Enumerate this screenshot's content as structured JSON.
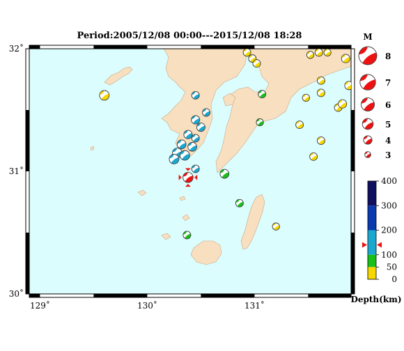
{
  "title": "Period:2005/12/08 00:00---2015/12/08 18:28",
  "colors": {
    "sea": "#dcfdfd",
    "land": "#f7dfbf",
    "coast": "#c8a888",
    "frame": "#000000",
    "shallow": "#f6d800",
    "mid": "#19c019",
    "deep": "#1ba8d0",
    "deeper": "#0a3ab0",
    "deepest": "#101060",
    "highlight": "#ee1111",
    "marker": "#ee1111"
  },
  "map": {
    "lon_range": [
      128.9,
      131.9
    ],
    "lat_range": [
      30.0,
      32.0
    ],
    "lon_ticks": [
      {
        "value": 129,
        "label": "129˚"
      },
      {
        "value": 130,
        "label": "130˚"
      },
      {
        "value": 131,
        "label": "131˚"
      }
    ],
    "lat_ticks": [
      {
        "value": 32,
        "label": "32˚"
      },
      {
        "value": 31,
        "label": "31˚"
      },
      {
        "value": 30,
        "label": "30˚"
      }
    ]
  },
  "magnitude_legend": {
    "title": "M",
    "items": [
      {
        "m": 8,
        "label": "8"
      },
      {
        "m": 7,
        "label": "7"
      },
      {
        "m": 6,
        "label": "6"
      },
      {
        "m": 5,
        "label": "5"
      },
      {
        "m": 4,
        "label": "4"
      },
      {
        "m": 3,
        "label": "3"
      }
    ]
  },
  "depth_legend": {
    "title": "Depth(km)",
    "max": 400,
    "segments": [
      {
        "from": 0,
        "to": 50,
        "color": "#f6d800"
      },
      {
        "from": 50,
        "to": 100,
        "color": "#19c019"
      },
      {
        "from": 100,
        "to": 200,
        "color": "#1ba8d0"
      },
      {
        "from": 200,
        "to": 300,
        "color": "#0a3ab0"
      },
      {
        "from": 300,
        "to": 400,
        "color": "#101060"
      }
    ],
    "ticks": [
      {
        "value": 400,
        "label": "400"
      },
      {
        "value": 300,
        "label": "300"
      },
      {
        "value": 200,
        "label": "200"
      },
      {
        "value": 100,
        "label": "100"
      },
      {
        "value": 50,
        "label": "50"
      },
      {
        "value": 0,
        "label": "0"
      }
    ],
    "current_depth": 140
  },
  "events": [
    {
      "lon": 129.6,
      "lat": 31.62,
      "depth": 10,
      "m": 4.3
    },
    {
      "lon": 130.45,
      "lat": 31.62,
      "depth": 150,
      "m": 3.5
    },
    {
      "lon": 130.55,
      "lat": 31.48,
      "depth": 160,
      "m": 3.5
    },
    {
      "lon": 130.45,
      "lat": 31.42,
      "depth": 150,
      "m": 3.8
    },
    {
      "lon": 130.5,
      "lat": 31.36,
      "depth": 160,
      "m": 3.8
    },
    {
      "lon": 130.38,
      "lat": 31.3,
      "depth": 150,
      "m": 3.8
    },
    {
      "lon": 130.45,
      "lat": 31.27,
      "depth": 150,
      "m": 3.5
    },
    {
      "lon": 130.32,
      "lat": 31.22,
      "depth": 140,
      "m": 4.0
    },
    {
      "lon": 130.42,
      "lat": 31.2,
      "depth": 150,
      "m": 4.0
    },
    {
      "lon": 130.28,
      "lat": 31.15,
      "depth": 150,
      "m": 4.3
    },
    {
      "lon": 130.35,
      "lat": 31.13,
      "depth": 160,
      "m": 4.3
    },
    {
      "lon": 130.25,
      "lat": 31.1,
      "depth": 150,
      "m": 4.3
    },
    {
      "lon": 130.45,
      "lat": 31.02,
      "depth": 160,
      "m": 3.5
    },
    {
      "lon": 130.38,
      "lat": 30.95,
      "depth": 140,
      "m": 4.5,
      "current": true
    },
    {
      "lon": 130.72,
      "lat": 30.98,
      "depth": 80,
      "m": 4.0
    },
    {
      "lon": 130.86,
      "lat": 30.74,
      "depth": 60,
      "m": 3.5
    },
    {
      "lon": 130.37,
      "lat": 30.48,
      "depth": 60,
      "m": 3.5
    },
    {
      "lon": 131.07,
      "lat": 31.63,
      "depth": 90,
      "m": 3.5
    },
    {
      "lon": 131.05,
      "lat": 31.4,
      "depth": 80,
      "m": 3.3
    },
    {
      "lon": 131.2,
      "lat": 30.55,
      "depth": 20,
      "m": 3.3
    },
    {
      "lon": 131.42,
      "lat": 31.38,
      "depth": 20,
      "m": 3.5
    },
    {
      "lon": 131.48,
      "lat": 31.6,
      "depth": 20,
      "m": 3.3
    },
    {
      "lon": 131.55,
      "lat": 31.12,
      "depth": 20,
      "m": 3.5
    },
    {
      "lon": 131.62,
      "lat": 31.25,
      "depth": 20,
      "m": 3.5
    },
    {
      "lon": 131.62,
      "lat": 31.64,
      "depth": 20,
      "m": 3.5
    },
    {
      "lon": 131.62,
      "lat": 31.74,
      "depth": 20,
      "m": 3.5
    },
    {
      "lon": 131.78,
      "lat": 31.52,
      "depth": 20,
      "m": 3.5
    },
    {
      "lon": 131.82,
      "lat": 31.55,
      "depth": 20,
      "m": 3.8
    },
    {
      "lon": 131.88,
      "lat": 31.7,
      "depth": 20,
      "m": 3.8
    },
    {
      "lon": 131.85,
      "lat": 31.92,
      "depth": 20,
      "m": 3.8
    },
    {
      "lon": 131.52,
      "lat": 31.95,
      "depth": 20,
      "m": 3.3
    },
    {
      "lon": 131.6,
      "lat": 31.97,
      "depth": 20,
      "m": 3.5
    },
    {
      "lon": 131.68,
      "lat": 31.97,
      "depth": 20,
      "m": 3.3
    },
    {
      "lon": 130.93,
      "lat": 31.97,
      "depth": 20,
      "m": 3.5
    },
    {
      "lon": 130.98,
      "lat": 31.92,
      "depth": 20,
      "m": 3.5
    },
    {
      "lon": 131.02,
      "lat": 31.88,
      "depth": 20,
      "m": 3.5
    }
  ]
}
